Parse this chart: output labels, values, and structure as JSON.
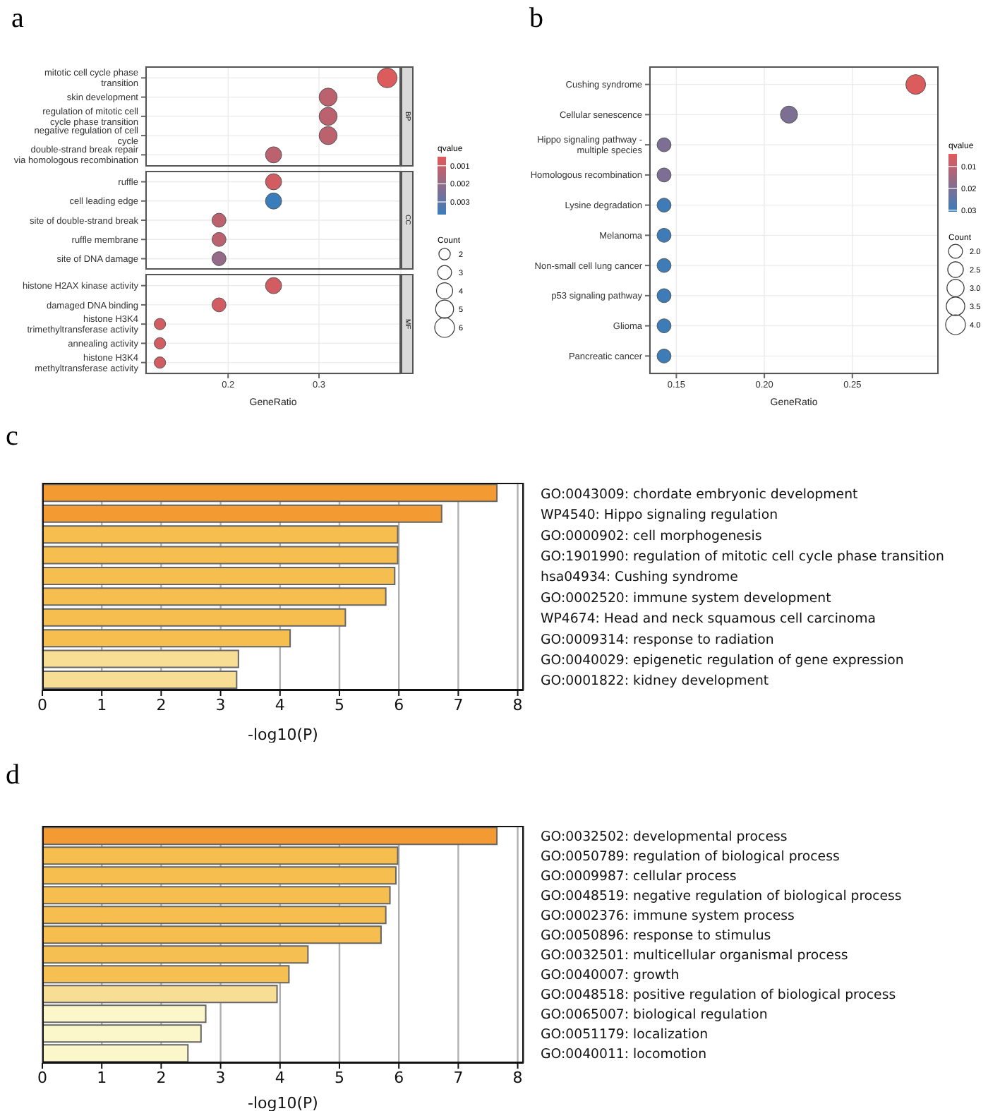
{
  "chart_data": [
    {
      "type": "bubble",
      "title": "a",
      "orientation": "horizontal",
      "marker": "circle",
      "grid": true,
      "categories": [
        "mitotic cell cycle phase transition",
        "skin development",
        "regulation of mitotic cell cycle phase transition",
        "negative regulation of cell cycle",
        "double-strand break repair via homologous recombination",
        "ruffle",
        "cell leading edge",
        "site of double-strand break",
        "ruffle membrane",
        "site of DNA damage",
        "histone H2AX kinase activity",
        "damaged DNA binding",
        "histone H3K4 trimethyltransferase activity",
        "annealing activity",
        "histone H3K4 methyltransferase activity"
      ],
      "values": [
        0.375,
        0.31,
        0.31,
        0.31,
        0.25,
        0.25,
        0.25,
        0.19,
        0.19,
        0.19,
        0.25,
        0.19,
        0.125,
        0.125,
        0.125
      ],
      "sizes": [
        6,
        5,
        5,
        5,
        4,
        4,
        4,
        3,
        3,
        3,
        4,
        3,
        2,
        2,
        2
      ],
      "cvalues": [
        0.0006,
        0.0012,
        0.0012,
        0.0012,
        0.0012,
        0.0008,
        0.0037,
        0.0012,
        0.0012,
        0.002,
        0.0008,
        0.0008,
        0.0008,
        0.0008,
        0.0008
      ],
      "annotations": [
        "BP",
        "CC",
        "MF"
      ],
      "xlabel": "GeneRatio",
      "xlim": [
        0.109,
        0.39
      ],
      "xticks": [
        0.2,
        0.3
      ],
      "clim": [
        0.0005,
        0.0037
      ],
      "cticks": [
        0.001,
        0.002,
        0.003
      ],
      "clabel": "qvalue",
      "size_legend": [
        2,
        3,
        4,
        5,
        6
      ],
      "legend_title": "Count"
    },
    {
      "type": "bubble",
      "title": "b",
      "orientation": "horizontal",
      "marker": "circle",
      "grid": true,
      "xlabel": "GeneRatio",
      "categories": [
        "Cushing syndrome",
        "Cellular senescence",
        "Hippo signaling pathway - multiple species",
        "Homologous recombination",
        "Lysine degradation",
        "Melanoma",
        "Non-small cell lung cancer",
        "p53 signaling pathway",
        "Glioma",
        "Pancreatic cancer"
      ],
      "values": [
        0.286,
        0.214,
        0.143,
        0.143,
        0.143,
        0.143,
        0.143,
        0.143,
        0.143,
        0.143
      ],
      "sizes": [
        4,
        3,
        2,
        2,
        2,
        2,
        2,
        2,
        2,
        2
      ],
      "cvalues": [
        0.005,
        0.02,
        0.02,
        0.02,
        0.03,
        0.03,
        0.03,
        0.03,
        0.03,
        0.03
      ],
      "xlim": [
        0.1346,
        0.299
      ],
      "xticks": [
        {
          "value": 0.15,
          "label": "0.15"
        },
        {
          "value": 0.2,
          "label": "0.20"
        },
        {
          "value": 0.25,
          "label": "0.25"
        }
      ],
      "clim": [
        0.0042,
        0.0307
      ],
      "cticks": [
        0.01,
        0.02,
        0.03
      ],
      "clabel": "qvalue",
      "size_legend": [
        {
          "value": 2,
          "label": "2.0"
        },
        {
          "value": 2.5,
          "label": "2.5"
        },
        {
          "value": 3,
          "label": "3.0"
        },
        {
          "value": 3.5,
          "label": "3.5"
        },
        {
          "value": 4,
          "label": "4.0"
        }
      ],
      "legend_title": "Count"
    },
    {
      "type": "bar",
      "title": "c",
      "orientation": "horizontal",
      "grid": "x",
      "xlabel": "-log10(P)",
      "categories": [
        "GO:0043009: chordate embryonic development",
        "WP4540: Hippo signaling regulation",
        "GO:0000902: cell morphogenesis",
        "GO:1901990: regulation of mitotic cell cycle phase transition",
        "hsa04934: Cushing syndrome",
        "GO:0002520: immune system development",
        "WP4674: Head and neck squamous cell carcinoma",
        "GO:0009314: response to radiation",
        "GO:0040029: epigenetic regulation of gene expression",
        "GO:0001822: kidney development"
      ],
      "values": [
        7.65,
        6.72,
        5.98,
        5.98,
        5.93,
        5.78,
        5.1,
        4.17,
        3.3,
        3.27
      ],
      "colors": [
        "#f39a33",
        "#f39a33",
        "#f6be4e",
        "#f6be4e",
        "#f6be4e",
        "#f6be4e",
        "#f6be4e",
        "#f6be4e",
        "#f8dd95",
        "#f8dd95"
      ],
      "xlim": [
        0,
        8.1
      ],
      "xticks": [
        0,
        1,
        2,
        3,
        4,
        5,
        6,
        7,
        8
      ]
    },
    {
      "type": "bar",
      "title": "d",
      "orientation": "horizontal",
      "grid": "x",
      "xlabel": "-log10(P)",
      "categories": [
        "GO:0032502: developmental process",
        "GO:0050789: regulation of biological process",
        "GO:0009987: cellular process",
        "GO:0048519: negative regulation of biological process",
        "GO:0002376: immune system process",
        "GO:0050896: response to stimulus",
        "GO:0032501: multicellular organismal process",
        "GO:0040007: growth",
        "GO:0048518: positive regulation of biological process",
        "GO:0065007: biological regulation",
        "GO:0051179: localization",
        "GO:0040011: locomotion"
      ],
      "values": [
        7.65,
        5.98,
        5.95,
        5.85,
        5.78,
        5.7,
        4.47,
        4.15,
        3.95,
        2.75,
        2.67,
        2.45
      ],
      "colors": [
        "#f39a33",
        "#f6be4e",
        "#f6be4e",
        "#f6be4e",
        "#f6be4e",
        "#f6be4e",
        "#f6bf52",
        "#f6bf52",
        "#f8dd95",
        "#fcf6cb",
        "#fcf6cb",
        "#fcf6cb"
      ],
      "xlim": [
        0,
        8.1
      ],
      "xticks": [
        0,
        1,
        2,
        3,
        4,
        5,
        6,
        7,
        8
      ]
    }
  ]
}
